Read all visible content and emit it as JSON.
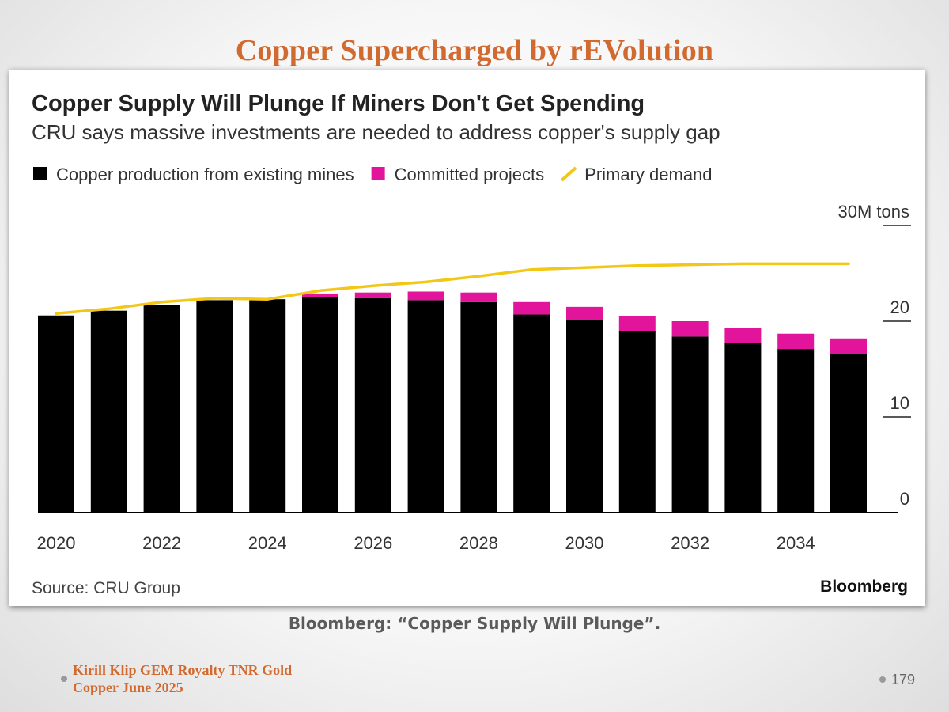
{
  "slide": {
    "title": "Copper Supercharged by rEVolution",
    "caption": "Bloomberg: “Copper Supply Will Plunge”.",
    "footer_line1": "Kirill Klip GEM Royalty TNR Gold",
    "footer_line2": "Copper June 2025",
    "page_number": "179"
  },
  "chart_data": {
    "type": "bar",
    "title": "Copper Supply Will Plunge If Miners Don't Get Spending",
    "subtitle": "CRU says massive investments are needed to address copper's supply gap",
    "unit_label": "30M tons",
    "source": "Source: CRU Group",
    "brand": "Bloomberg",
    "stacked": true,
    "x": [
      2020,
      2021,
      2022,
      2023,
      2024,
      2025,
      2026,
      2027,
      2028,
      2029,
      2030,
      2031,
      2032,
      2033,
      2034,
      2035
    ],
    "x_tick_labels": [
      "2020",
      "",
      "2022",
      "",
      "2024",
      "",
      "2026",
      "",
      "2028",
      "",
      "2030",
      "",
      "2032",
      "",
      "2034",
      ""
    ],
    "ylim": [
      0,
      30
    ],
    "yticks": [
      0,
      10,
      20,
      30
    ],
    "y_tick_labels": [
      "0",
      "10",
      "20",
      "30M tons"
    ],
    "legend_position": "top-left",
    "series": [
      {
        "name": "Copper production from existing mines",
        "kind": "bar",
        "color": "#000000",
        "values": [
          20.6,
          21.1,
          21.7,
          22.2,
          22.3,
          22.5,
          22.4,
          22.2,
          22.0,
          20.7,
          20.1,
          19.0,
          18.4,
          17.7,
          17.1,
          16.6
        ]
      },
      {
        "name": "Committed projects",
        "kind": "bar",
        "color": "#e1149b",
        "values": [
          0.0,
          0.0,
          0.0,
          0.0,
          0.0,
          0.4,
          0.6,
          0.9,
          1.0,
          1.3,
          1.4,
          1.5,
          1.6,
          1.6,
          1.6,
          1.6
        ]
      },
      {
        "name": "Primary demand",
        "kind": "line",
        "color": "#f2c716",
        "values": [
          20.8,
          21.3,
          22.0,
          22.4,
          22.3,
          23.2,
          23.7,
          24.1,
          24.7,
          25.4,
          25.6,
          25.8,
          25.9,
          26.0,
          26.0,
          26.0
        ]
      }
    ]
  }
}
